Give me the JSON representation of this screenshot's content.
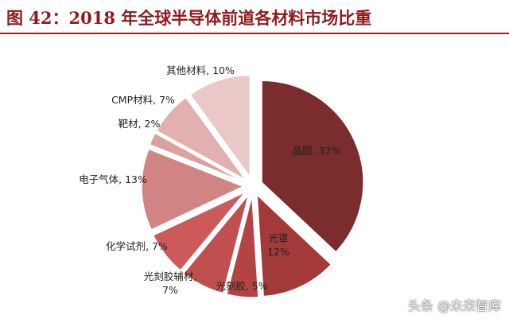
{
  "header": {
    "title": "图 42：2018 年全球半导体前道各材料市场比重"
  },
  "chart_data": {
    "type": "pie",
    "title": "图 42：2018 年全球半导体前道各材料市场比重",
    "unit": "%",
    "slices": [
      {
        "name": "晶圆",
        "value": 37,
        "label_lines": [
          "晶圆, 37%"
        ],
        "color": "#7b2c2c"
      },
      {
        "name": "光罩",
        "value": 12,
        "label_lines": [
          "光罩",
          "12%"
        ],
        "color": "#a23a3a"
      },
      {
        "name": "光刻胶",
        "value": 5,
        "label_lines": [
          "光刻胶, 5%"
        ],
        "color": "#b34444"
      },
      {
        "name": "光刻胶辅材",
        "value": 7,
        "label_lines": [
          "光刻胶辅材,",
          "7%"
        ],
        "color": "#c04f4f"
      },
      {
        "name": "化学试剂",
        "value": 7,
        "label_lines": [
          "化学试剂, 7%"
        ],
        "color": "#cd5a5a"
      },
      {
        "name": "电子气体",
        "value": 13,
        "label_lines": [
          "电子气体, 13%"
        ],
        "color": "#d28484"
      },
      {
        "name": "靶材",
        "value": 2,
        "label_lines": [
          "靶材, 2%"
        ],
        "color": "#dba0a0"
      },
      {
        "name": "CMP材料",
        "value": 7,
        "label_lines": [
          "CMP材料, 7%"
        ],
        "color": "#e2b0b0"
      },
      {
        "name": "其他材料",
        "value": 10,
        "label_lines": [
          "其他材料, 10%"
        ],
        "color": "#ebc8c8"
      }
    ]
  },
  "watermark": "头条 @未来智库"
}
